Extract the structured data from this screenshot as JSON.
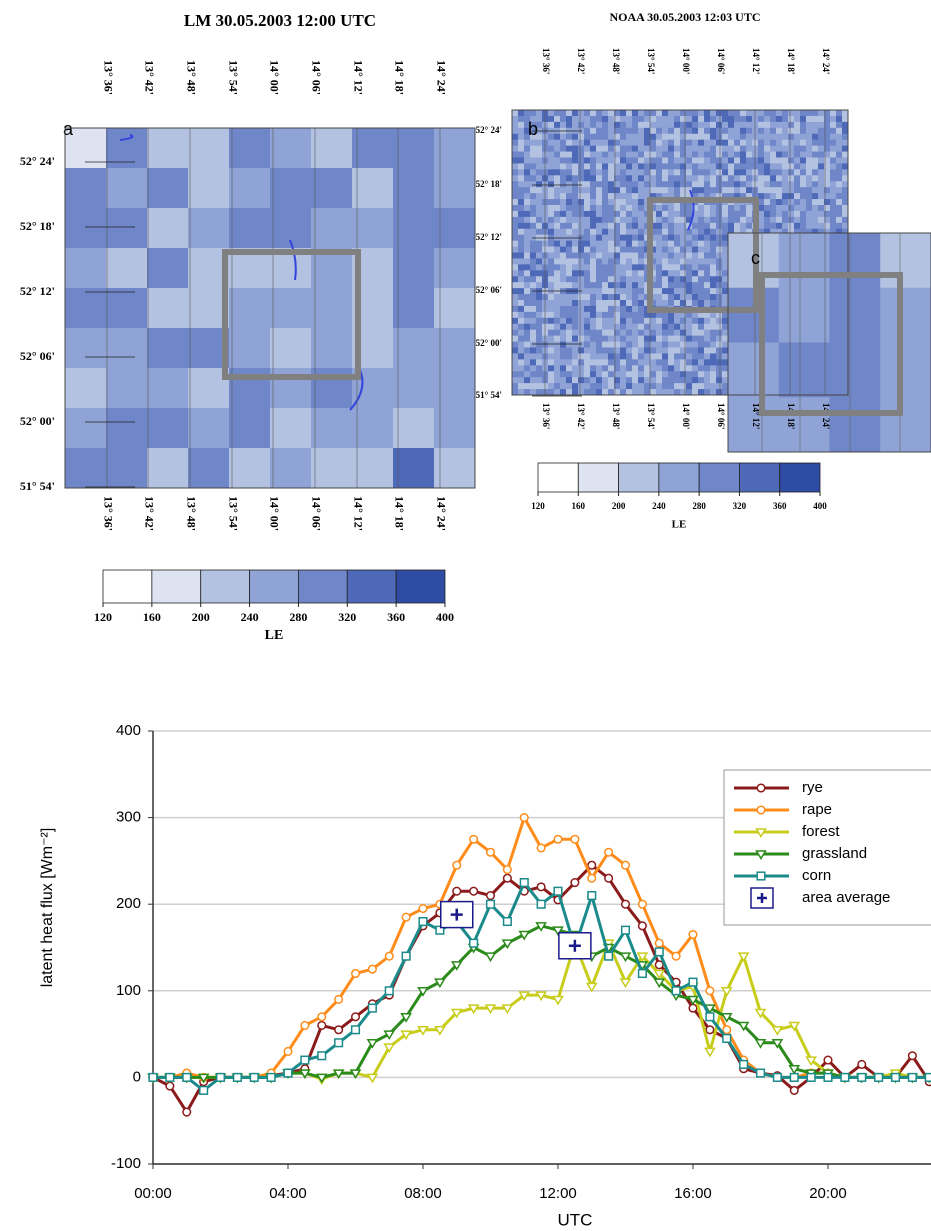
{
  "maps": {
    "a": {
      "title": "LM  30.05.2003  12:00 UTC",
      "panel": "a",
      "lon": [
        "13° 36'",
        "13° 42'",
        "13° 48'",
        "13° 54'",
        "14° 00'",
        "14° 06'",
        "14° 12'",
        "14° 18'",
        "14° 24'"
      ],
      "lat": [
        "52° 24'",
        "52° 18'",
        "52° 12'",
        "52° 06'",
        "52° 00'",
        "51° 54'"
      ],
      "colorbar": {
        "ticks": [
          120,
          160,
          200,
          240,
          280,
          320,
          360,
          400
        ],
        "label": "LE"
      }
    },
    "b": {
      "title": "NOAA 30.05.2003  12:03 UTC",
      "panel": "b",
      "lon": [
        "13° 36'",
        "13° 42'",
        "13° 48'",
        "13° 54'",
        "14° 00'",
        "14° 06'",
        "14° 12'",
        "14° 18'",
        "14° 24'"
      ],
      "lat": [
        "52° 24'",
        "52° 18'",
        "52° 12'",
        "52° 06'",
        "52° 00'",
        "51° 54'"
      ],
      "colorbar": {
        "ticks": [
          120,
          160,
          200,
          240,
          280,
          320,
          360,
          400
        ],
        "label": "LE"
      }
    },
    "c": {
      "panel": "c"
    }
  },
  "chart_data": {
    "type": "line",
    "xlabel": "UTC",
    "ylabel": "latent heat flux [Wm⁻²]",
    "x": [
      0,
      0.5,
      1,
      1.5,
      2,
      2.5,
      3,
      3.5,
      4,
      4.5,
      5,
      5.5,
      6,
      6.5,
      7,
      7.5,
      8,
      8.5,
      9,
      9.5,
      10,
      10.5,
      11,
      11.5,
      12,
      12.5,
      13,
      13.5,
      14,
      14.5,
      15,
      15.5,
      16,
      16.5,
      17,
      17.5,
      18,
      18.5,
      19,
      19.5,
      20,
      20.5,
      21,
      21.5,
      22,
      22.5,
      23
    ],
    "series": [
      {
        "name": "rye",
        "color": "#8b1a1a",
        "marker": "circle",
        "values": [
          0,
          -10,
          -40,
          -5,
          0,
          0,
          0,
          2,
          5,
          10,
          60,
          55,
          70,
          85,
          95,
          140,
          175,
          190,
          215,
          215,
          210,
          230,
          215,
          220,
          205,
          225,
          245,
          230,
          200,
          175,
          130,
          110,
          80,
          55,
          45,
          10,
          5,
          2,
          -15,
          0,
          20,
          0,
          15,
          0,
          0,
          25,
          -5
        ]
      },
      {
        "name": "rape",
        "color": "#ff8c1a",
        "marker": "circle",
        "values": [
          0,
          0,
          5,
          0,
          0,
          0,
          0,
          5,
          30,
          60,
          70,
          90,
          120,
          125,
          140,
          185,
          195,
          200,
          245,
          275,
          260,
          240,
          300,
          265,
          275,
          275,
          230,
          260,
          245,
          200,
          155,
          140,
          165,
          100,
          55,
          20,
          5,
          0,
          0,
          5,
          5,
          0,
          0,
          0,
          0,
          0,
          0
        ]
      },
      {
        "name": "forest",
        "color": "#c8cc1a",
        "marker": "triangle",
        "values": [
          0,
          0,
          0,
          0,
          0,
          0,
          0,
          0,
          5,
          5,
          -2,
          5,
          5,
          0,
          35,
          50,
          55,
          55,
          75,
          80,
          80,
          80,
          95,
          95,
          90,
          155,
          105,
          155,
          110,
          140,
          120,
          100,
          105,
          30,
          100,
          140,
          75,
          55,
          60,
          20,
          5,
          0,
          0,
          0,
          5,
          0,
          0
        ]
      },
      {
        "name": "grassland",
        "color": "#2a8a1a",
        "marker": "triangle",
        "values": [
          0,
          0,
          0,
          0,
          0,
          0,
          0,
          0,
          5,
          5,
          0,
          5,
          5,
          40,
          50,
          70,
          100,
          110,
          130,
          150,
          140,
          155,
          165,
          175,
          170,
          165,
          140,
          150,
          140,
          130,
          110,
          95,
          90,
          80,
          70,
          60,
          40,
          40,
          10,
          5,
          5,
          0,
          0,
          0,
          0,
          0,
          0
        ]
      },
      {
        "name": "corn",
        "color": "#1a8a8a",
        "marker": "square",
        "values": [
          0,
          0,
          0,
          -15,
          0,
          0,
          0,
          0,
          5,
          20,
          25,
          40,
          55,
          80,
          100,
          140,
          180,
          170,
          180,
          155,
          200,
          180,
          225,
          200,
          215,
          150,
          210,
          140,
          170,
          120,
          145,
          100,
          110,
          70,
          45,
          15,
          5,
          0,
          0,
          0,
          0,
          0,
          0,
          0,
          0,
          0,
          0
        ]
      }
    ],
    "area_average": {
      "name": "area average",
      "color": "#1a1a8a",
      "x": [
        9,
        12.5
      ],
      "values": [
        188,
        152
      ]
    },
    "xlim": [
      0,
      23
    ],
    "ylim": [
      -100,
      400
    ],
    "xticks": [
      {
        "value": 0,
        "label": "00:00"
      },
      {
        "value": 4,
        "label": "04:00"
      },
      {
        "value": 8,
        "label": "08:00"
      },
      {
        "value": 12,
        "label": "12:00"
      },
      {
        "value": 16,
        "label": "16:00"
      },
      {
        "value": 20,
        "label": "20:00"
      }
    ],
    "yticks": [
      -100,
      0,
      100,
      200,
      300,
      400
    ],
    "grid": true,
    "legend": "upper right"
  }
}
